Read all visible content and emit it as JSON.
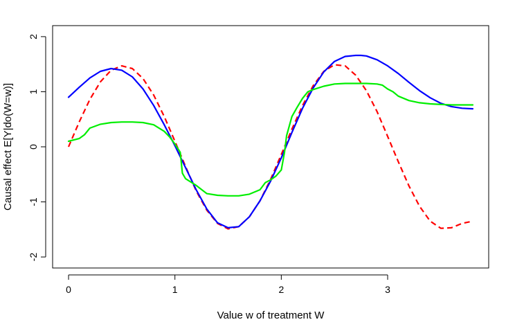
{
  "chart_data": {
    "type": "line",
    "title": "",
    "xlabel": "Value w of treatment W",
    "ylabel": "Causal effect E[Y|do(W=w)]",
    "xlim": [
      -0.15,
      3.95
    ],
    "ylim": [
      -2.2,
      2.2
    ],
    "xticks": [
      0,
      1,
      2,
      3
    ],
    "yticks": [
      -2,
      -1,
      0,
      1,
      2
    ],
    "grid": false,
    "legend": "none",
    "series": [
      {
        "color": "#ff0000",
        "dash": "dashed",
        "x": [
          0,
          0.1,
          0.2,
          0.3,
          0.4,
          0.5,
          0.6,
          0.7,
          0.8,
          0.9,
          1.0,
          1.1,
          1.2,
          1.3,
          1.4,
          1.5,
          1.6,
          1.7,
          1.8,
          1.9,
          2.0,
          2.1,
          2.2,
          2.3,
          2.4,
          2.5,
          2.6,
          2.7,
          2.8,
          2.9,
          3.0,
          3.1,
          3.2,
          3.3,
          3.4,
          3.5,
          3.6,
          3.7,
          3.8
        ],
        "y": [
          0.0,
          0.45,
          0.86,
          1.18,
          1.39,
          1.47,
          1.42,
          1.24,
          0.94,
          0.55,
          0.1,
          -0.36,
          -0.8,
          -1.15,
          -1.39,
          -1.49,
          -1.45,
          -1.27,
          -0.98,
          -0.59,
          -0.14,
          0.32,
          0.75,
          1.11,
          1.37,
          1.49,
          1.47,
          1.3,
          1.02,
          0.64,
          0.19,
          -0.27,
          -0.71,
          -1.08,
          -1.35,
          -1.48,
          -1.47,
          -1.39,
          -1.35
        ]
      },
      {
        "color": "#0000ff",
        "dash": "solid",
        "x": [
          0,
          0.1,
          0.2,
          0.3,
          0.4,
          0.5,
          0.6,
          0.7,
          0.8,
          0.9,
          1.0,
          1.1,
          1.2,
          1.3,
          1.4,
          1.5,
          1.6,
          1.7,
          1.8,
          1.9,
          2.0,
          2.1,
          2.2,
          2.3,
          2.4,
          2.5,
          2.6,
          2.7,
          2.75,
          2.8,
          2.9,
          3.0,
          3.1,
          3.2,
          3.3,
          3.4,
          3.5,
          3.6,
          3.7,
          3.8
        ],
        "y": [
          0.9,
          1.08,
          1.25,
          1.37,
          1.42,
          1.39,
          1.27,
          1.05,
          0.75,
          0.4,
          0.02,
          -0.38,
          -0.78,
          -1.13,
          -1.38,
          -1.47,
          -1.45,
          -1.27,
          -0.98,
          -0.62,
          -0.2,
          0.26,
          0.7,
          1.07,
          1.36,
          1.55,
          1.64,
          1.66,
          1.66,
          1.65,
          1.58,
          1.47,
          1.33,
          1.17,
          1.02,
          0.89,
          0.79,
          0.73,
          0.7,
          0.69
        ]
      },
      {
        "color": "#00ee00",
        "dash": "solid",
        "x": [
          0,
          0.1,
          0.15,
          0.2,
          0.3,
          0.4,
          0.5,
          0.6,
          0.7,
          0.8,
          0.9,
          0.95,
          1.0,
          1.05,
          1.07,
          1.1,
          1.2,
          1.3,
          1.4,
          1.5,
          1.6,
          1.7,
          1.8,
          1.85,
          1.9,
          1.95,
          2.0,
          2.03,
          2.05,
          2.1,
          2.15,
          2.2,
          2.25,
          2.3,
          2.4,
          2.5,
          2.6,
          2.7,
          2.8,
          2.9,
          2.95,
          3.0,
          3.05,
          3.1,
          3.2,
          3.3,
          3.4,
          3.5,
          3.6,
          3.7,
          3.8
        ],
        "y": [
          0.1,
          0.15,
          0.22,
          0.34,
          0.41,
          0.44,
          0.45,
          0.45,
          0.44,
          0.4,
          0.28,
          0.18,
          0.05,
          -0.1,
          -0.48,
          -0.58,
          -0.7,
          -0.85,
          -0.88,
          -0.89,
          -0.89,
          -0.86,
          -0.78,
          -0.65,
          -0.6,
          -0.53,
          -0.42,
          -0.1,
          0.2,
          0.55,
          0.72,
          0.88,
          1.0,
          1.04,
          1.1,
          1.14,
          1.15,
          1.15,
          1.15,
          1.14,
          1.12,
          1.05,
          1.0,
          0.92,
          0.84,
          0.8,
          0.78,
          0.77,
          0.76,
          0.76,
          0.76
        ]
      }
    ]
  }
}
